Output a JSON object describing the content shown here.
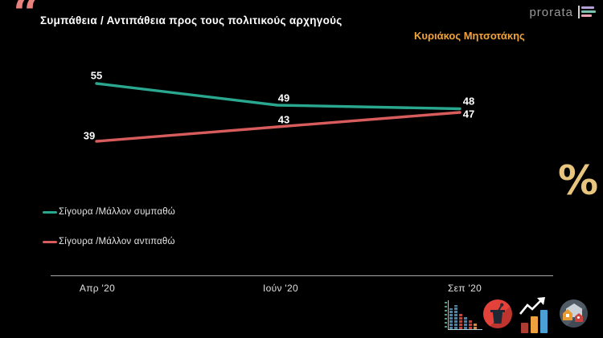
{
  "header": {
    "quote_icon": "“",
    "title": "Συμπάθεια / Αντιπάθεια προς τους πολιτικούς αρχηγούς",
    "logo_text": "prorata",
    "subtitle": "Κυριάκος Μητσοτάκης"
  },
  "chart_data": {
    "type": "line",
    "title": "Συμπάθεια / Αντιπάθεια προς τους πολιτικούς αρχηγούς",
    "subtitle": "Κυριάκος Μητσοτάκης",
    "unit": "%",
    "categories": [
      "Απρ '20",
      "Ιούν '20",
      "Σεπ '20"
    ],
    "series": [
      {
        "name": "Σίγουρα /Μάλλον συμπαθώ",
        "color": "#2aa78f",
        "values": [
          55,
          49,
          48
        ]
      },
      {
        "name": "Σίγουρα /Μάλλον αντιπαθώ",
        "color": "#d95c5c",
        "values": [
          39,
          43,
          47
        ]
      }
    ],
    "ylim": [
      35,
      60
    ],
    "grid": false,
    "data_labels": true,
    "legend_position": "bottom-left",
    "background": "#000000"
  },
  "footer": {
    "percent_symbol": "%"
  },
  "icons": {
    "quote": "quote-marks-icon",
    "logo_mark": "mini-bar-chart-icon",
    "footer_1": "pixel-bar-chart-icon",
    "footer_2": "podium-microphone-icon",
    "footer_3": "growth-arrow-chart-icon",
    "footer_4": "houses-icon"
  },
  "colors": {
    "background": "#000000",
    "title": "#ffffff",
    "subtitle_orange": "#f2a438",
    "quote_pink": "#e9827d",
    "percent_gold": "#e7c57e",
    "axis_gray": "#a9a9a9",
    "logo_gray": "#9a9a9a",
    "logo_bar_1": "#b3a0d6",
    "logo_bar_2": "#79c2b0",
    "logo_bar_3": "#e9a3b3"
  }
}
